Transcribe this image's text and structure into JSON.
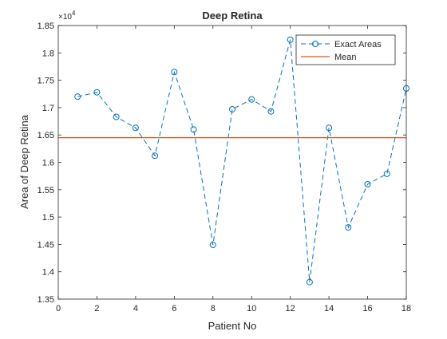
{
  "chart_data": {
    "type": "line",
    "title": "Deep Retina",
    "xlabel": "Patient No",
    "ylabel": "Area of Deep Retina",
    "y_exponent_label": "×10",
    "y_exponent_power": "4",
    "y_scale_factor": 10000,
    "xlim": [
      0,
      18
    ],
    "ylim": [
      13500,
      18500
    ],
    "x_ticks": [
      0,
      2,
      4,
      6,
      8,
      10,
      12,
      14,
      16,
      18
    ],
    "y_ticks": [
      13500,
      14000,
      14500,
      15000,
      15500,
      16000,
      16500,
      17000,
      17500,
      18000,
      18500
    ],
    "x_tick_labels": [
      "0",
      "2",
      "4",
      "6",
      "8",
      "10",
      "12",
      "14",
      "16",
      "18"
    ],
    "y_tick_labels": [
      "1.35",
      "1.4",
      "1.45",
      "1.5",
      "1.55",
      "1.6",
      "1.65",
      "1.7",
      "1.75",
      "1.8",
      "1.85"
    ],
    "grid": false,
    "legend_position": "top-right",
    "series": [
      {
        "name": "Exact Areas",
        "style": "dashed-circle",
        "color": "#0072BD",
        "x": [
          1,
          2,
          3,
          4,
          5,
          6,
          7,
          8,
          9,
          10,
          11,
          12,
          13,
          14,
          15,
          16,
          17,
          18
        ],
        "y": [
          17200,
          17280,
          16830,
          16630,
          16120,
          17650,
          16600,
          14490,
          16970,
          17150,
          16930,
          18240,
          13810,
          16630,
          14810,
          15600,
          15790,
          17350
        ]
      },
      {
        "name": "Mean",
        "style": "solid",
        "color": "#D95319",
        "x": [
          0,
          18
        ],
        "y": [
          16450,
          16450
        ]
      }
    ]
  }
}
